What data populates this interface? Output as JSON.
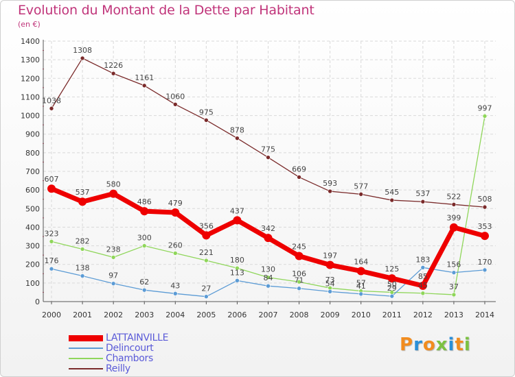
{
  "chart_data": {
    "type": "line",
    "title": "Evolution du Montant de la Dette par Habitant",
    "unit_label": "(en €)",
    "x": [
      "2000",
      "2001",
      "2002",
      "2003",
      "2004",
      "2005",
      "2006",
      "2007",
      "2008",
      "2009",
      "2010",
      "2011",
      "2012",
      "2013",
      "2014"
    ],
    "y_ticks": [
      "0",
      "100",
      "200",
      "300",
      "400",
      "500",
      "600",
      "700",
      "800",
      "900",
      "1000",
      "1100",
      "1200",
      "1300",
      "1400"
    ],
    "ylim": [
      0,
      1400
    ],
    "grid": true,
    "legend_position": "bottom-left",
    "series": [
      {
        "name": "Reilly",
        "color": "#7a2a2a",
        "values": [
          1038,
          1308,
          1226,
          1161,
          1060,
          975,
          878,
          775,
          669,
          593,
          577,
          545,
          537,
          522,
          508
        ],
        "labels": [
          "1038",
          "1308",
          "1226",
          "1161",
          "1060",
          "975",
          "878",
          "775",
          "669",
          "593",
          "577",
          "545",
          "537",
          "522",
          "508"
        ]
      },
      {
        "name": "Chambors",
        "color": "#8fd65a",
        "values": [
          323,
          282,
          238,
          300,
          260,
          221,
          180,
          130,
          106,
          73,
          57,
          50,
          45,
          37,
          997
        ],
        "labels": [
          "323",
          "282",
          "238",
          "300",
          "260",
          "221",
          "180",
          "130",
          "106",
          "73",
          "57",
          "50",
          "45",
          "37",
          "997"
        ]
      },
      {
        "name": "Delincourt",
        "color": "#5b9bd5",
        "values": [
          176,
          138,
          97,
          62,
          43,
          27,
          113,
          84,
          71,
          54,
          41,
          29,
          183,
          156,
          170
        ],
        "labels": [
          "176",
          "138",
          "97",
          "62",
          "43",
          "27",
          "113",
          "84",
          "71",
          "54",
          "41",
          "29",
          "183",
          "156",
          "170"
        ]
      },
      {
        "name": "LATTAINVILLE",
        "color": "#ee0000",
        "values": [
          607,
          537,
          580,
          486,
          479,
          356,
          437,
          342,
          245,
          197,
          164,
          125,
          85,
          399,
          353
        ],
        "labels": [
          "607",
          "537",
          "580",
          "486",
          "479",
          "356",
          "437",
          "342",
          "245",
          "197",
          "164",
          "125",
          "85",
          "399",
          "353"
        ]
      }
    ]
  },
  "legend": {
    "items": [
      {
        "label": "LATTAINVILLE",
        "color": "#ee0000"
      },
      {
        "label": "Delincourt",
        "color": "#5b9bd5"
      },
      {
        "label": "Chambors",
        "color": "#8fd65a"
      },
      {
        "label": "Reilly",
        "color": "#7a2a2a"
      }
    ]
  },
  "logo": {
    "letters": [
      "P",
      "r",
      "o",
      "x",
      "i",
      "t",
      "i"
    ],
    "colors": [
      "#f28c1e",
      "#2a8fd8",
      "#f28c1e",
      "#7cc242",
      "#2a8fd8",
      "#f28c1e",
      "#7cc242"
    ]
  }
}
